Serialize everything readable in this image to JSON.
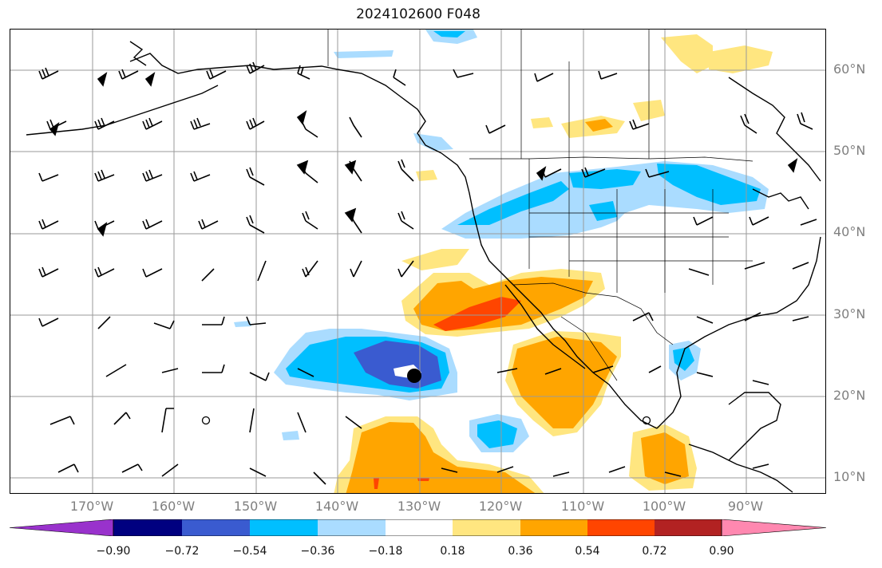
{
  "title": "2024102600 F048",
  "lat_labels": [
    "60°N",
    "50°N",
    "40°N",
    "30°N",
    "20°N",
    "10°N"
  ],
  "lon_labels": [
    "170°W",
    "160°W",
    "150°W",
    "140°W",
    "130°W",
    "120°W",
    "110°W",
    "100°W",
    "90°W"
  ],
  "colorbar": {
    "ticks": [
      "−0.90",
      "−0.72",
      "−0.54",
      "−0.36",
      "−0.18",
      "0.18",
      "0.36",
      "0.54",
      "0.72",
      "0.90"
    ],
    "colors": [
      "#9932cc",
      "#000080",
      "#3a5bd0",
      "#00bfff",
      "#aadcff",
      "#ffffff",
      "#ffe680",
      "#ffa500",
      "#ff4500",
      "#b22222",
      "#ff88b0"
    ]
  },
  "field_colors": {
    "light_blue": "#aadcff",
    "blue": "#00bfff",
    "royal_blue": "#3a5bd0",
    "light_yellow": "#ffe680",
    "orange": "#ffa500",
    "orange_red": "#ff4500"
  },
  "marker": "storm-center-dot"
}
